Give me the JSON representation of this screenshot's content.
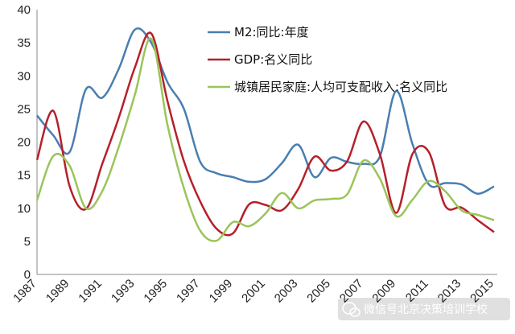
{
  "chart_data": {
    "type": "line",
    "title": "",
    "xlabel": "",
    "ylabel": "",
    "xlim": [
      1987,
      2015
    ],
    "ylim": [
      0,
      40
    ],
    "yticks": [
      0,
      5,
      10,
      15,
      20,
      25,
      30,
      35,
      40
    ],
    "xtick_labels": [
      "1987",
      "1989",
      "1991",
      "1993",
      "1995",
      "1997",
      "1999",
      "2001",
      "2003",
      "2005",
      "2007",
      "2009",
      "2011",
      "2013",
      "2015"
    ],
    "grid": false,
    "legend_position": "top-right",
    "x": [
      1987,
      1988,
      1989,
      1990,
      1991,
      1992,
      1993,
      1994,
      1995,
      1996,
      1997,
      1998,
      1999,
      2000,
      2001,
      2002,
      2003,
      2004,
      2005,
      2006,
      2007,
      2008,
      2009,
      2010,
      2011,
      2012,
      2013,
      2014,
      2015
    ],
    "series": [
      {
        "name": "M2:同比:年度",
        "color": "#4a7eb0",
        "values": [
          24,
          21,
          18.5,
          28,
          26.7,
          31,
          37,
          35,
          29,
          25,
          17,
          15.3,
          14.7,
          14,
          14.4,
          16.8,
          19.6,
          14.7,
          17.6,
          17,
          16.7,
          17.8,
          27.7,
          19.7,
          13.6,
          13.8,
          13.6,
          12.2,
          13.3
        ]
      },
      {
        "name": "GDP:名义同比",
        "color": "#b5202a",
        "values": [
          17.3,
          24.7,
          13.3,
          9.9,
          16.7,
          23.6,
          31.3,
          36.4,
          26.1,
          17.1,
          11,
          6.9,
          6.2,
          10.6,
          10.5,
          9.7,
          12.9,
          17.8,
          15.7,
          17.1,
          23.1,
          18.2,
          9.3,
          18.2,
          18.5,
          10.4,
          10.1,
          8.2,
          6.4
        ]
      },
      {
        "name": "城镇居民家庭:人均可支配收入:名义同比",
        "color": "#9bc45a",
        "values": [
          11.2,
          17.9,
          16.4,
          10,
          12.6,
          19.2,
          27.2,
          35.6,
          22.5,
          13,
          6.6,
          5.1,
          7.9,
          7.3,
          9.2,
          12.3,
          10,
          11.2,
          11.4,
          12.1,
          17.2,
          14.5,
          8.8,
          11.3,
          14.1,
          12.6,
          9.7,
          9,
          8.2
        ]
      }
    ]
  },
  "watermark": {
    "text": "微信号北京决策培训学校",
    "icon": "wechat-icon"
  }
}
